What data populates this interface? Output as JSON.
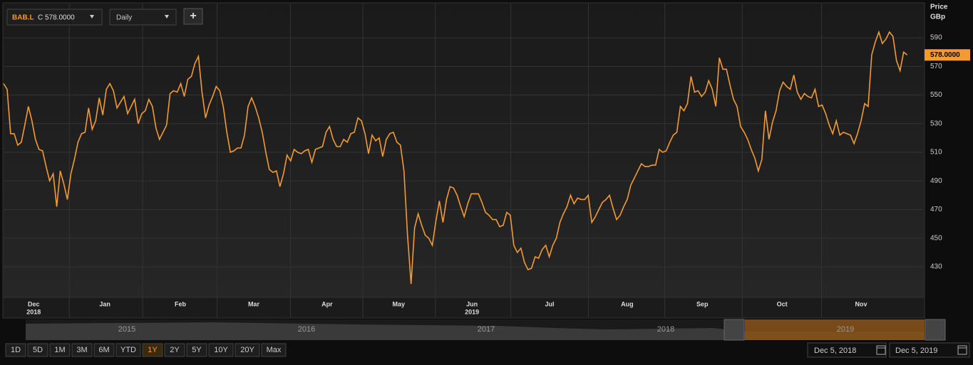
{
  "chart_data": {
    "type": "line",
    "y_title": "Price",
    "y_unit": "GBp",
    "series": [
      {
        "color": "#f39a32",
        "values": [
          558,
          554,
          523,
          523,
          515,
          517,
          529,
          542,
          532,
          519,
          512,
          511,
          500,
          490,
          495,
          472,
          497,
          488,
          477,
          495,
          505,
          517,
          523,
          524,
          541,
          526,
          532,
          548,
          536,
          554,
          558,
          553,
          541,
          545,
          549,
          537,
          542,
          547,
          530,
          537,
          539,
          547,
          542,
          527,
          519,
          524,
          529,
          551,
          553,
          552,
          558,
          549,
          561,
          563,
          572,
          577,
          552,
          534,
          543,
          549,
          556,
          553,
          542,
          524,
          510,
          511,
          513,
          513,
          522,
          542,
          548,
          542,
          534,
          524,
          510,
          498,
          496,
          497,
          486,
          495,
          508,
          504,
          512,
          510,
          509,
          511,
          512,
          503,
          512,
          513,
          514,
          524,
          528,
          519,
          514,
          514,
          519,
          517,
          523,
          524,
          534,
          532,
          523,
          509,
          522,
          518,
          520,
          507,
          519,
          523,
          524,
          517,
          515,
          497,
          452,
          418,
          457,
          467,
          459,
          452,
          450,
          445,
          462,
          476,
          461,
          477,
          486,
          485,
          480,
          472,
          465,
          474,
          481,
          481,
          481,
          475,
          468,
          466,
          463,
          463,
          458,
          459,
          468,
          466,
          445,
          440,
          443,
          433,
          428,
          429,
          437,
          436,
          442,
          445,
          437,
          445,
          450,
          461,
          467,
          472,
          480,
          474,
          478,
          477,
          477,
          480,
          461,
          465,
          470,
          475,
          477,
          480,
          471,
          463,
          466,
          472,
          477,
          487,
          492,
          497,
          502,
          500,
          500,
          501,
          501,
          512,
          510,
          511,
          517,
          522,
          524,
          542,
          539,
          544,
          563,
          552,
          553,
          549,
          552,
          560,
          554,
          542,
          576,
          568,
          568,
          557,
          547,
          542,
          528,
          524,
          519,
          512,
          506,
          497,
          505,
          539,
          519,
          531,
          539,
          553,
          559,
          556,
          554,
          564,
          552,
          547,
          551,
          549,
          548,
          554,
          542,
          543,
          537,
          529,
          523,
          532,
          522,
          524,
          523,
          522,
          516,
          523,
          532,
          544,
          542,
          578,
          587,
          594,
          586,
          589,
          594,
          591,
          574,
          567,
          580,
          578
        ]
      }
    ],
    "xlim": [
      0,
      259.5
    ],
    "ylim": [
      408.6,
      613.9
    ],
    "yticks": [
      430,
      450,
      470,
      490,
      510,
      530,
      550,
      570,
      590
    ],
    "xticks": [
      {
        "value": 8.5,
        "label": "Dec"
      },
      {
        "value": 28.6,
        "label": "Jan"
      },
      {
        "value": 49.9,
        "label": "Feb"
      },
      {
        "value": 70.6,
        "label": "Mar"
      },
      {
        "value": 91.3,
        "label": "Apr"
      },
      {
        "value": 111.5,
        "label": "May"
      },
      {
        "value": 132.2,
        "label": "Jun"
      },
      {
        "value": 154.1,
        "label": "Jul"
      },
      {
        "value": 176,
        "label": "Aug"
      },
      {
        "value": 197.2,
        "label": "Sep"
      },
      {
        "value": 219.7,
        "label": "Oct"
      },
      {
        "value": 242,
        "label": "Nov"
      }
    ],
    "year_labels": [
      {
        "value": 8.5,
        "label": "2018"
      },
      {
        "value": 132.2,
        "label": "2019"
      }
    ],
    "last_price": {
      "value": 578,
      "label": "578.0000"
    },
    "grid": true
  },
  "toolbar": {
    "symbol": "BAB.L",
    "quote": "C 578.0000",
    "interval": "Daily",
    "add": "+"
  },
  "navigator": {
    "years": [
      "2015",
      "2016",
      "2017",
      "2018",
      "2019"
    ]
  },
  "ranges": [
    "1D",
    "5D",
    "1M",
    "3M",
    "6M",
    "YTD",
    "1Y",
    "2Y",
    "5Y",
    "10Y",
    "20Y",
    "Max"
  ],
  "date_from": "Dec 5, 2018",
  "date_to": "Dec 5, 2019"
}
